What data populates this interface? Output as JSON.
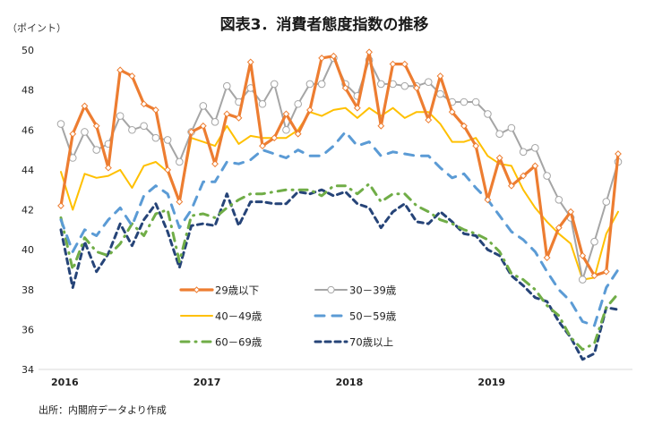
{
  "chart_data": {
    "type": "line",
    "title": "図表3．消費者態度指数の推移",
    "ylabel": "（ポイント）",
    "xlabel": "",
    "source_note": "出所：内閣府データより作成",
    "ylim": [
      34,
      50
    ],
    "yticks": [
      "34",
      "36",
      "38",
      "40",
      "42",
      "44",
      "46",
      "48",
      "50"
    ],
    "x_start": "2016-01",
    "x_end": "2019-12",
    "x_tick_labels": [
      "2016",
      "2017",
      "2018",
      "2019"
    ],
    "grid": false,
    "legend_placement": "lower-center",
    "series": [
      {
        "name": "29歳以下",
        "color": "#ED7D31",
        "style": "solid-diamond",
        "values": [
          42.2,
          45.8,
          47.2,
          46.2,
          44.1,
          49.0,
          48.7,
          47.3,
          47.0,
          44.0,
          42.4,
          45.9,
          46.2,
          44.3,
          46.8,
          46.6,
          49.4,
          45.2,
          45.6,
          46.8,
          45.8,
          47.0,
          49.6,
          49.7,
          48.1,
          47.1,
          49.9,
          46.2,
          49.3,
          49.3,
          48.1,
          46.5,
          48.7,
          46.9,
          46.2,
          45.2,
          42.5,
          44.6,
          43.2,
          43.7,
          44.2,
          39.6,
          41.1,
          41.9,
          39.7,
          38.7,
          38.9,
          44.8
        ]
      },
      {
        "name": "30－39歳",
        "color": "#A5A5A5",
        "style": "solid-circle",
        "values": [
          46.3,
          44.6,
          45.9,
          45.0,
          45.3,
          46.7,
          46.0,
          46.2,
          45.6,
          45.5,
          44.4,
          45.9,
          47.2,
          46.4,
          48.2,
          47.4,
          48.1,
          47.3,
          48.3,
          46.0,
          47.3,
          48.3,
          48.3,
          49.6,
          48.3,
          47.7,
          49.5,
          48.3,
          48.3,
          48.2,
          48.2,
          48.4,
          47.8,
          47.4,
          47.4,
          47.4,
          46.8,
          45.8,
          46.1,
          44.9,
          45.1,
          43.7,
          42.5,
          41.6,
          38.5,
          40.4,
          42.4,
          44.4
        ]
      },
      {
        "name": "40－49歳",
        "color": "#FFC000",
        "style": "solid",
        "values": [
          43.9,
          42.0,
          43.8,
          43.6,
          43.7,
          44.0,
          43.1,
          44.2,
          44.4,
          43.9,
          42.4,
          45.6,
          45.4,
          45.2,
          46.2,
          45.3,
          45.7,
          45.6,
          45.6,
          45.6,
          46.0,
          46.9,
          46.7,
          47.0,
          47.1,
          46.6,
          47.1,
          46.7,
          47.1,
          46.6,
          46.9,
          46.9,
          46.3,
          45.4,
          45.4,
          45.6,
          44.7,
          44.3,
          44.2,
          43.0,
          42.1,
          41.4,
          40.8,
          40.3,
          38.5,
          38.6,
          40.8,
          41.9
        ]
      },
      {
        "name": "50－59歳",
        "color": "#5B9BD5",
        "style": "dash",
        "values": [
          41.5,
          39.9,
          41.0,
          40.7,
          41.5,
          42.1,
          41.2,
          42.7,
          43.2,
          42.8,
          41.1,
          42.0,
          43.4,
          43.4,
          44.4,
          44.3,
          44.5,
          45.0,
          44.8,
          44.6,
          45.0,
          44.7,
          44.7,
          45.2,
          45.9,
          45.2,
          45.4,
          44.7,
          44.9,
          44.8,
          44.7,
          44.7,
          44.1,
          43.6,
          43.8,
          43.1,
          42.5,
          41.7,
          40.9,
          40.5,
          39.9,
          38.9,
          38.0,
          37.4,
          36.4,
          36.2,
          38.1,
          39.0
        ]
      },
      {
        "name": "60－69歳",
        "color": "#70AD47",
        "style": "dash-dot",
        "values": [
          41.6,
          39.0,
          40.6,
          39.9,
          39.7,
          40.3,
          41.3,
          40.7,
          41.8,
          42.0,
          39.4,
          41.7,
          41.8,
          41.6,
          42.1,
          42.5,
          42.8,
          42.8,
          42.9,
          43.0,
          43.0,
          43.0,
          42.7,
          43.2,
          43.2,
          42.8,
          43.3,
          42.4,
          42.8,
          42.8,
          42.2,
          41.9,
          41.5,
          41.3,
          41.0,
          40.8,
          40.5,
          39.9,
          38.8,
          38.5,
          38.0,
          37.2,
          36.7,
          35.6,
          35.0,
          35.3,
          37.1,
          37.8
        ]
      },
      {
        "name": "70歳以上",
        "color": "#264478",
        "style": "short-dash",
        "values": [
          41.0,
          38.1,
          40.4,
          38.9,
          39.8,
          41.3,
          40.2,
          41.5,
          42.3,
          40.9,
          39.1,
          41.2,
          41.3,
          41.2,
          42.8,
          41.2,
          42.4,
          42.4,
          42.3,
          42.3,
          42.9,
          42.8,
          43.0,
          42.7,
          42.9,
          42.3,
          42.1,
          41.1,
          41.9,
          42.3,
          41.4,
          41.3,
          41.9,
          41.4,
          40.8,
          40.7,
          40.0,
          39.7,
          38.7,
          38.2,
          37.6,
          37.4,
          36.4,
          35.6,
          34.5,
          34.8,
          37.1,
          37.0
        ]
      }
    ]
  }
}
